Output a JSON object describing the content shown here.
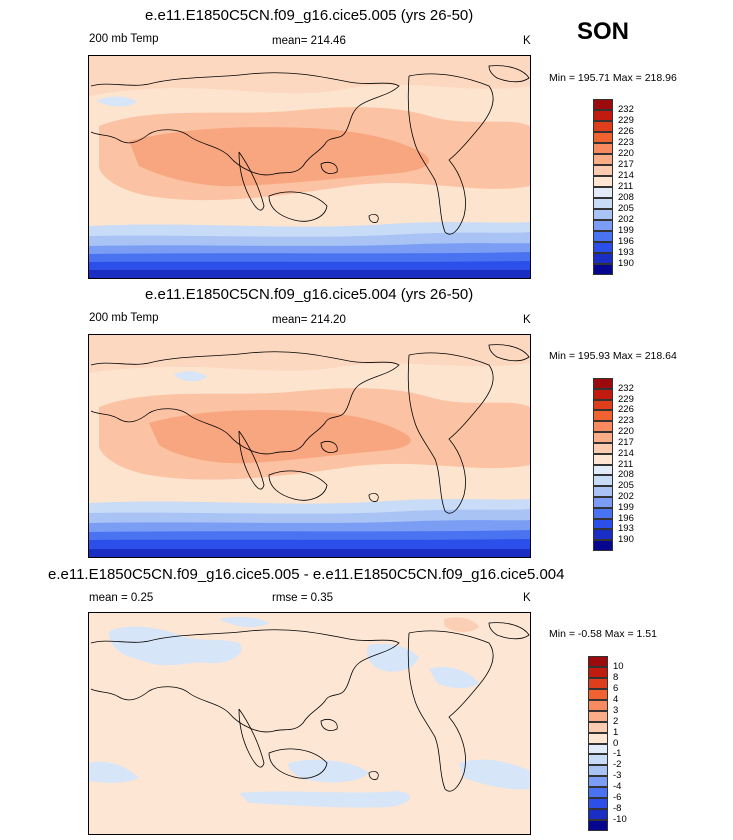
{
  "season": "SON",
  "colors": {
    "abs_scale": [
      "#9b0a0d",
      "#c11a0e",
      "#df3e1c",
      "#f0622f",
      "#f78a5e",
      "#fbad88",
      "#fdcbaf",
      "#fee6d3",
      "#e1ebf9",
      "#c8dbf7",
      "#a9c3f5",
      "#7b9ef4",
      "#4a73f1",
      "#2b4fe8",
      "#1a2ec4",
      "#07068f"
    ],
    "diff_scale": [
      "#9b0a0d",
      "#c11a0e",
      "#df3e1c",
      "#f0622f",
      "#f78a5e",
      "#fbad88",
      "#fdcbaf",
      "#fee6d3",
      "#e1ebf9",
      "#c8dbf7",
      "#a9c3f5",
      "#7b9ef4",
      "#4a73f1",
      "#2b4fe8",
      "#1a2ec4",
      "#07068f"
    ]
  },
  "chart_data": [
    {
      "type": "heatmap",
      "title": "e.e11.E1850C5CN.f09_g16.cice5.005 (yrs 26-50)",
      "variable": "200 mb Temp",
      "mean_text": "mean= 214.46",
      "units": "K",
      "minmax_text": "Min = 195.71 Max = 218.96",
      "min": 195.71,
      "max": 218.96,
      "colorbar_levels": [
        "232",
        "229",
        "226",
        "223",
        "220",
        "217",
        "214",
        "211",
        "208",
        "205",
        "202",
        "199",
        "196",
        "193",
        "190"
      ]
    },
    {
      "type": "heatmap",
      "title": "e.e11.E1850C5CN.f09_g16.cice5.004 (yrs 26-50)",
      "variable": "200 mb Temp",
      "mean_text": "mean= 214.20",
      "units": "K",
      "minmax_text": "Min = 195.93 Max = 218.64",
      "min": 195.93,
      "max": 218.64,
      "colorbar_levels": [
        "232",
        "229",
        "226",
        "223",
        "220",
        "217",
        "214",
        "211",
        "208",
        "205",
        "202",
        "199",
        "196",
        "193",
        "190"
      ]
    },
    {
      "type": "heatmap",
      "title": "e.e11.E1850C5CN.f09_g16.cice5.005 - e.e11.E1850C5CN.f09_g16.cice5.004",
      "mean_text": "mean =   0.25",
      "rmse_text": "rmse =   0.35",
      "units": "K",
      "minmax_text": "Min =  -0.58 Max =   1.51",
      "min": -0.58,
      "max": 1.51,
      "colorbar_levels": [
        "10",
        "8",
        "6",
        "4",
        "3",
        "2",
        "1",
        "0",
        "-1",
        "-2",
        "-3",
        "-4",
        "-6",
        "-8",
        "-10"
      ]
    }
  ]
}
